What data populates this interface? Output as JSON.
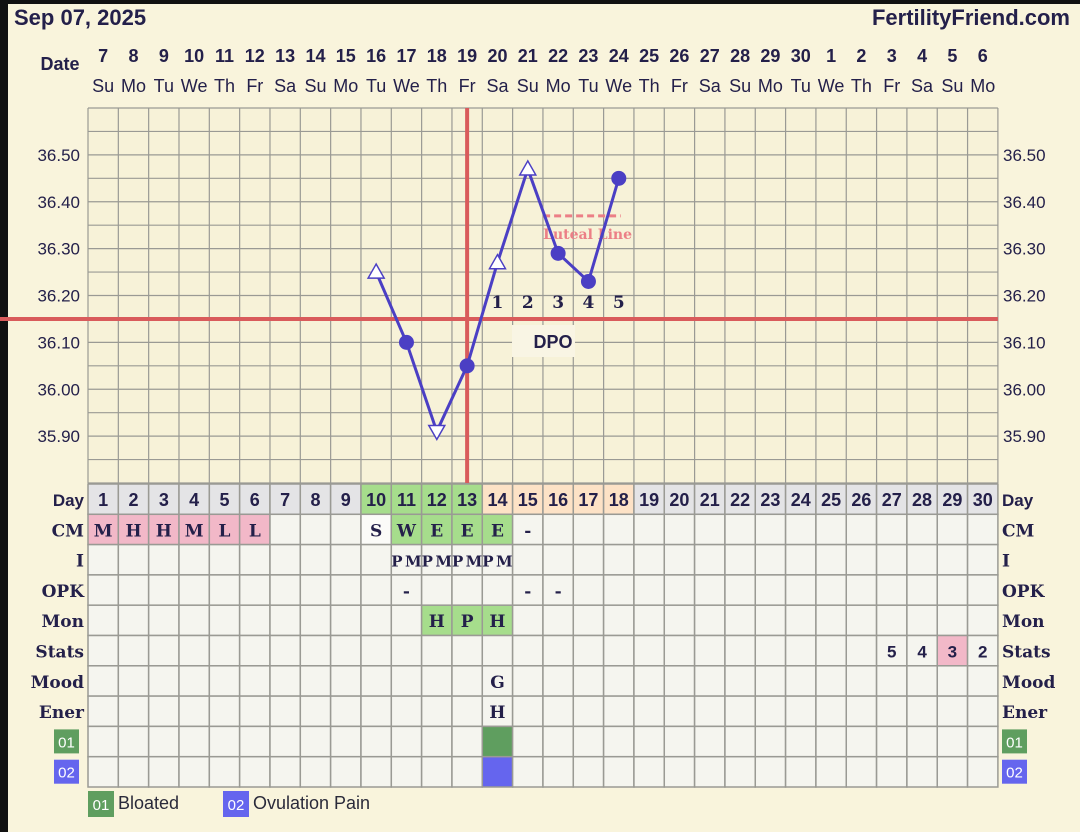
{
  "header": {
    "date": "Sep 07, 2025",
    "brand": "FertilityFriend.com",
    "date_label": "Date"
  },
  "dates": [
    "7",
    "8",
    "9",
    "10",
    "11",
    "12",
    "13",
    "14",
    "15",
    "16",
    "17",
    "18",
    "19",
    "20",
    "21",
    "22",
    "23",
    "24",
    "25",
    "26",
    "27",
    "28",
    "29",
    "30",
    "1",
    "2",
    "3",
    "4",
    "5",
    "6"
  ],
  "weekdays": [
    "Su",
    "Mo",
    "Tu",
    "We",
    "Th",
    "Fr",
    "Sa",
    "Su",
    "Mo",
    "Tu",
    "We",
    "Th",
    "Fr",
    "Sa",
    "Su",
    "Mo",
    "Tu",
    "We",
    "Th",
    "Fr",
    "Sa",
    "Su",
    "Mo",
    "Tu",
    "We",
    "Th",
    "Fr",
    "Sa",
    "Su",
    "Mo"
  ],
  "chart_data": {
    "type": "line",
    "ylim": [
      35.8,
      36.6
    ],
    "yticks": [
      "36.50",
      "36.40",
      "36.30",
      "36.20",
      "36.10",
      "36.00",
      "35.90"
    ],
    "grid": true,
    "series": [
      {
        "color": "#4b3fc4",
        "points": [
          {
            "day": 10,
            "temp": 36.25,
            "marker": "open-triangle-up"
          },
          {
            "day": 11,
            "temp": 36.1,
            "marker": "filled-circle"
          },
          {
            "day": 12,
            "temp": 35.91,
            "marker": "open-triangle-down"
          },
          {
            "day": 13,
            "temp": 36.05,
            "marker": "filled-circle"
          },
          {
            "day": 14,
            "temp": 36.27,
            "marker": "open-triangle-up"
          },
          {
            "day": 15,
            "temp": 36.47,
            "marker": "open-triangle-up"
          },
          {
            "day": 16,
            "temp": 36.29,
            "marker": "filled-circle"
          },
          {
            "day": 17,
            "temp": 36.23,
            "marker": "filled-circle"
          },
          {
            "day": 18,
            "temp": 36.45,
            "marker": "filled-circle"
          }
        ]
      }
    ],
    "coverline": {
      "temp": 36.15,
      "color": "#d95b5b"
    },
    "ovulation_day": 13,
    "luteal_line": {
      "temp": 36.37,
      "from_day": 16,
      "to_day": 18,
      "label": "Luteal Line",
      "color": "#ec7f86"
    },
    "dpo": {
      "label": "DPO",
      "days": [
        14,
        15,
        16,
        17,
        18
      ],
      "values": [
        "1",
        "2",
        "3",
        "4",
        "5"
      ]
    }
  },
  "rows": {
    "labels": [
      "Day",
      "CM",
      "I",
      "OPK",
      "Mon",
      "Stats",
      "Mood",
      "Ener",
      "01",
      "02"
    ],
    "cm": {
      "1": "M",
      "2": "H",
      "3": "H",
      "4": "M",
      "5": "L",
      "6": "L",
      "10": "S",
      "11": "W",
      "12": "E",
      "13": "E",
      "14": "E",
      "15": "-"
    },
    "intercourse": {
      "11": "PM",
      "12": "PM",
      "13": "PM",
      "14": "PM"
    },
    "opk": {
      "11": "-",
      "15": "-",
      "16": "-"
    },
    "mon": {
      "12": "H",
      "13": "P",
      "14": "H"
    },
    "stats": {
      "27": "5",
      "28": "4",
      "29": "3",
      "30": "2"
    },
    "mood": {
      "14": "G"
    },
    "ener": {
      "14": "H"
    },
    "sym01": [
      14
    ],
    "sym02": [
      14
    ]
  },
  "legend": [
    {
      "code": "01",
      "label": "Bloated",
      "color": "#5f9e5f"
    },
    {
      "code": "02",
      "label": "Ovulation Pain",
      "color": "#6565ee"
    }
  ],
  "colors": {
    "pink": "#f2b8c8",
    "green": "#a6dd8c",
    "peach": "#fde2c6",
    "grey": "#e4e4e6",
    "ink": "#24204a",
    "grid": "#9a9a94",
    "cell": "#f5f5ef"
  }
}
